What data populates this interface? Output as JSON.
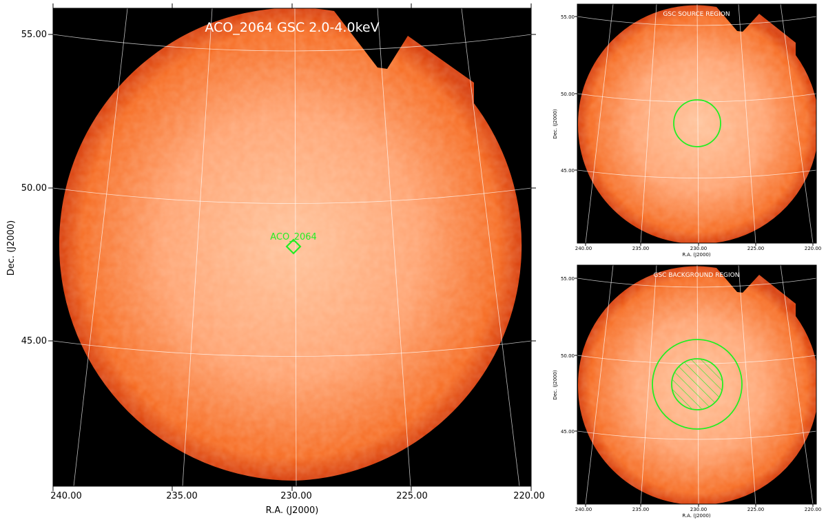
{
  "main_panel": {
    "title": "ACO_2064 GSC 2.0-4.0keV",
    "target_label": "ACO_2064",
    "xlabel": "R.A. (J2000)",
    "ylabel": "Dec. (J2000)",
    "ra_ticks": [
      "240.00",
      "235.00",
      "230.00",
      "225.00",
      "220.00"
    ],
    "dec_ticks": [
      "55.00",
      "50.00",
      "45.00"
    ]
  },
  "source_panel": {
    "title": "GSC SOURCE REGION",
    "xlabel": "R.A. (J2000)",
    "ylabel": "Dec. (J2000)",
    "ra_ticks": [
      "240.00",
      "235.00",
      "230.00",
      "225.00",
      "220.00"
    ],
    "dec_ticks": [
      "55.00",
      "50.00",
      "45.00"
    ]
  },
  "background_panel": {
    "title": "GSC BACKGROUND REGION",
    "xlabel": "R.A. (J2000)",
    "ylabel": "Dec. (J2000)",
    "ra_ticks": [
      "240.00",
      "235.00",
      "230.00",
      "225.00",
      "220.00"
    ],
    "dec_ticks": [
      "55.00",
      "50.00",
      "45.00"
    ]
  },
  "colors": {
    "sky_outer": "#f25a10",
    "sky_inner": "#ffb88a",
    "frame_bg": "#000000",
    "region": "#22ee22",
    "title_text": "#ffffff"
  }
}
